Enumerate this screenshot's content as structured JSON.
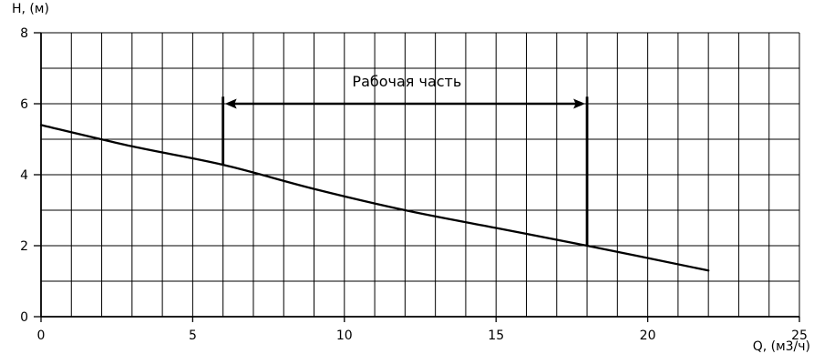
{
  "chart_data": {
    "type": "line",
    "title": "",
    "xlabel": "Q, (м3/ч)",
    "ylabel": "H, (м)",
    "xlim": [
      0,
      25
    ],
    "ylim": [
      0,
      8
    ],
    "x_grid_step": 1,
    "y_grid_step": 1,
    "grid": true,
    "x_tick_labels": [
      0,
      5,
      10,
      15,
      20,
      25
    ],
    "y_tick_labels": [
      0,
      2,
      4,
      6,
      8
    ],
    "series": [
      {
        "points": [
          [
            0,
            5.4
          ],
          [
            3,
            4.8
          ],
          [
            6,
            4.28
          ],
          [
            9,
            3.6
          ],
          [
            12,
            3.0
          ],
          [
            15,
            2.5
          ],
          [
            18,
            2.0
          ],
          [
            22,
            1.3
          ]
        ]
      }
    ],
    "annotations": [
      {
        "type": "range-arrow",
        "label": "Рабочая часть",
        "y": 6.0,
        "x_start": 6,
        "x_end": 18,
        "marker_top": 6.2
      }
    ],
    "colors": {
      "foreground": "#000000",
      "background": "#ffffff"
    }
  }
}
